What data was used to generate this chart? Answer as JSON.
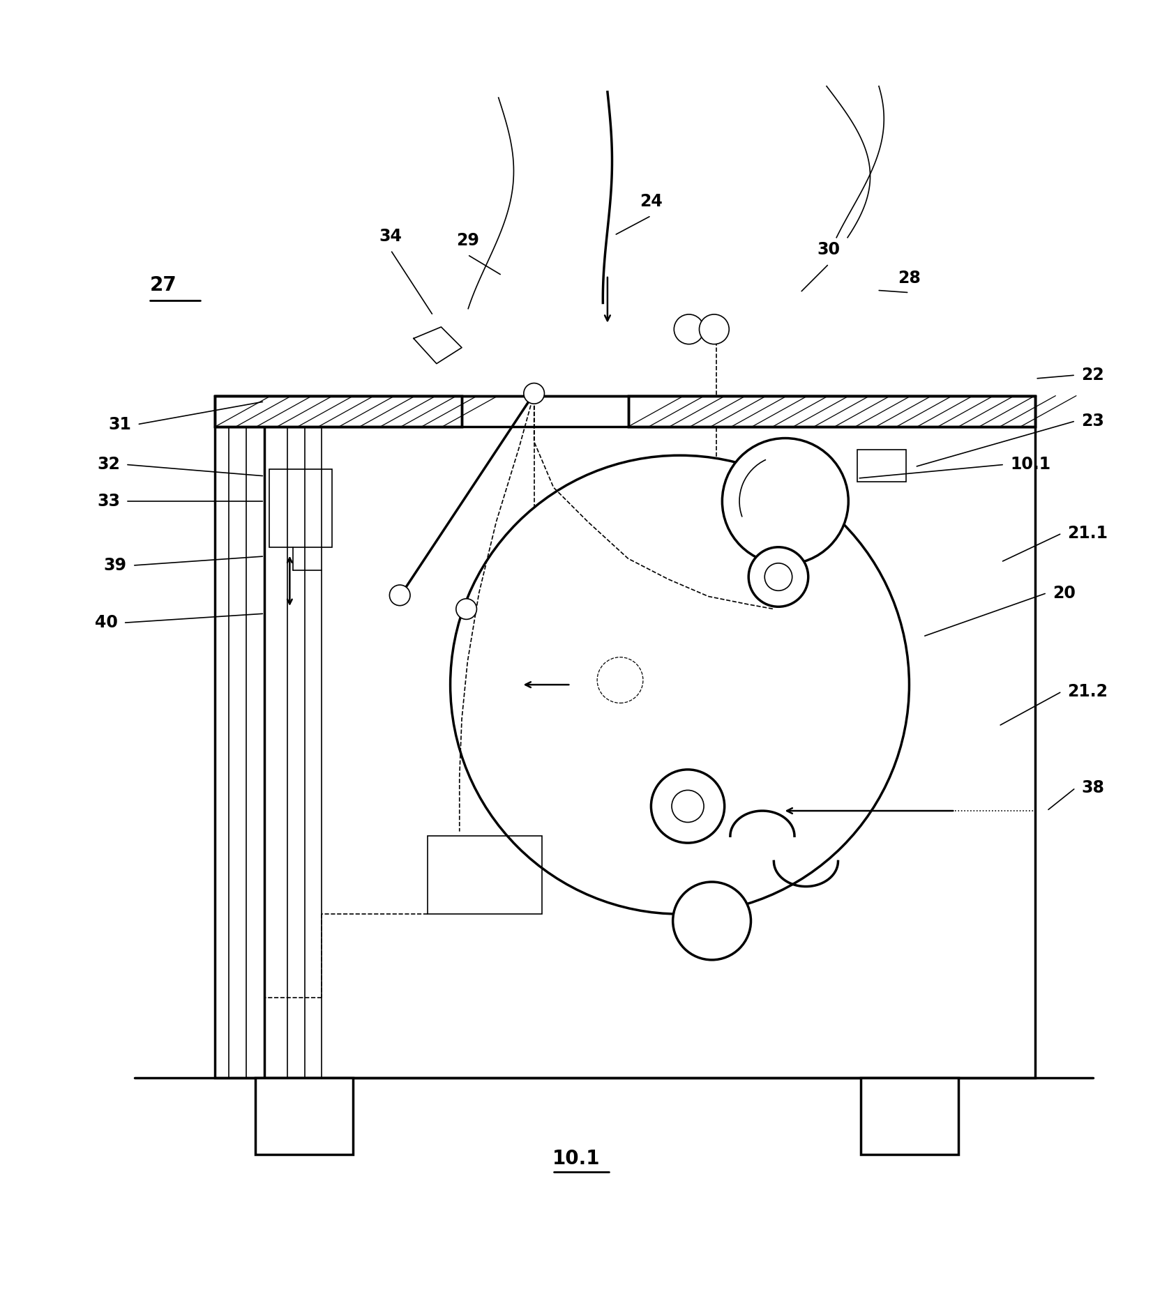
{
  "bg_color": "#ffffff",
  "line_color": "#000000",
  "fig_width": 16.53,
  "fig_height": 18.59,
  "dpi": 100
}
